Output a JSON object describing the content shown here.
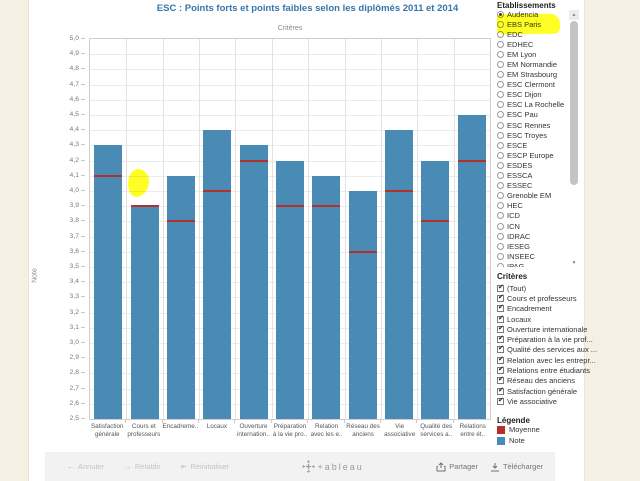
{
  "title": "ESC : Points forts et points faibles selon les diplômés 2011 et 2014",
  "chart_data": {
    "type": "bar",
    "caption": "Critères",
    "ylabel": "Note",
    "ylim": [
      2.5,
      5.0
    ],
    "ytick_step": 0.1,
    "grid": true,
    "legend_position": "right",
    "categories": [
      "Satisfaction générale",
      "Cours et professeurs",
      "Encadreme..",
      "Locaux",
      "Ouverture internation..",
      "Préparation à la vie pro..",
      "Relation avec les e..",
      "Réseau des anciens",
      "Vie associative",
      "Qualité des services a..",
      "Relations entre ét.."
    ],
    "category_label_lines": [
      [
        "Satisfaction",
        "générale"
      ],
      [
        "Cours et",
        "professeurs"
      ],
      [
        "Encadreme.."
      ],
      [
        "Locaux"
      ],
      [
        "Ouverture",
        "internation.."
      ],
      [
        "Préparation",
        "à la vie pro.."
      ],
      [
        "Relation",
        "avec les e.."
      ],
      [
        "Réseau des",
        "anciens"
      ],
      [
        "Vie",
        "associative"
      ],
      [
        "Qualité des",
        "services a.."
      ],
      [
        "Relations",
        "entre ét.."
      ]
    ],
    "series": [
      {
        "name": "Note",
        "color": "#4a8bb5",
        "values": [
          4.3,
          3.9,
          4.1,
          4.4,
          4.3,
          4.2,
          4.1,
          4.0,
          4.4,
          4.2,
          4.5
        ]
      },
      {
        "name": "Moyenne",
        "color": "#b5302b",
        "values": [
          4.1,
          3.9,
          3.8,
          4.0,
          4.2,
          3.9,
          3.9,
          3.6,
          4.0,
          3.8,
          4.2
        ]
      }
    ]
  },
  "etablissements": {
    "header": "Etablissements",
    "selected": "Audencia",
    "options": [
      "Audencia",
      "EBS Paris",
      "EDC",
      "EDHEC",
      "EM Lyon",
      "EM Normandie",
      "EM Strasbourg",
      "ESC Clermont",
      "ESC Dijon",
      "ESC La Rochelle",
      "ESC Pau",
      "ESC Rennes",
      "ESC Troyes",
      "ESCE",
      "ESCP Europe",
      "ESDES",
      "ESSCA",
      "ESSEC",
      "Grenoble EM",
      "HEC",
      "ICD",
      "ICN",
      "IDRAC",
      "IESEG",
      "INSEEC",
      "IPAG"
    ]
  },
  "criteres": {
    "header": "Critères",
    "all_checked": true,
    "options": [
      "(Tout)",
      "Cours et professeurs",
      "Encadrement",
      "Locaux",
      "Ouverture internationale",
      "Préparation à la vie prof...",
      "Qualité des services aux ...",
      "Relation avec les entrepr...",
      "Relations entre étudiants",
      "Réseau des anciens",
      "Satisfaction générale",
      "Vie associative"
    ]
  },
  "legend": {
    "header": "Légende",
    "items": [
      {
        "label": "Moyenne",
        "color": "#b5302b"
      },
      {
        "label": "Note",
        "color": "#4a8bb5"
      }
    ]
  },
  "annotations": {
    "highlight_color": "#ffff00",
    "highlighted": [
      "Audencia option",
      "zone above Cours et professeurs bar"
    ]
  },
  "footer": {
    "annuler": "Annuler",
    "retablir": "Rétablir",
    "reinitialiser": "Réinitialiser",
    "logo_text": "+ableau",
    "partager": "Partager",
    "telecharger": "Télécharger"
  }
}
